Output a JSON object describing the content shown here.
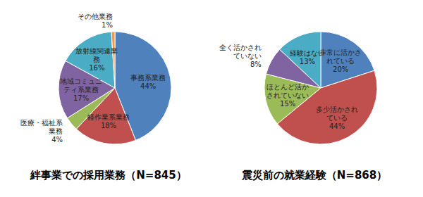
{
  "chart_data": [
    {
      "type": "pie",
      "title": "絆事業での採用業務（N=845）",
      "categories": [
        "事務系業務",
        "軽作業系業務",
        "医療・福祉系業務",
        "地域コミュニティ系業務",
        "放射線関連業務",
        "その他業務"
      ],
      "values": [
        44,
        18,
        4,
        17,
        16,
        1
      ],
      "value_labels": [
        "44%",
        "18%",
        "4%",
        "17%",
        "16%",
        "1%"
      ],
      "colors": [
        "#4f81bd",
        "#c0504d",
        "#9bbb59",
        "#8064a2",
        "#4bacc6",
        "#f79646"
      ]
    },
    {
      "type": "pie",
      "title": "震災前の就業経験（N=868）",
      "categories": [
        "非常に活かされている",
        "多少活かされている",
        "ほとんど活かされていない",
        "全く活かされていない",
        "経験はない"
      ],
      "values": [
        20,
        44,
        15,
        8,
        13
      ],
      "value_labels": [
        "20%",
        "44%",
        "15%",
        "8%",
        "13%"
      ],
      "colors": [
        "#4f81bd",
        "#c0504d",
        "#9bbb59",
        "#8064a2",
        "#4bacc6"
      ]
    }
  ]
}
